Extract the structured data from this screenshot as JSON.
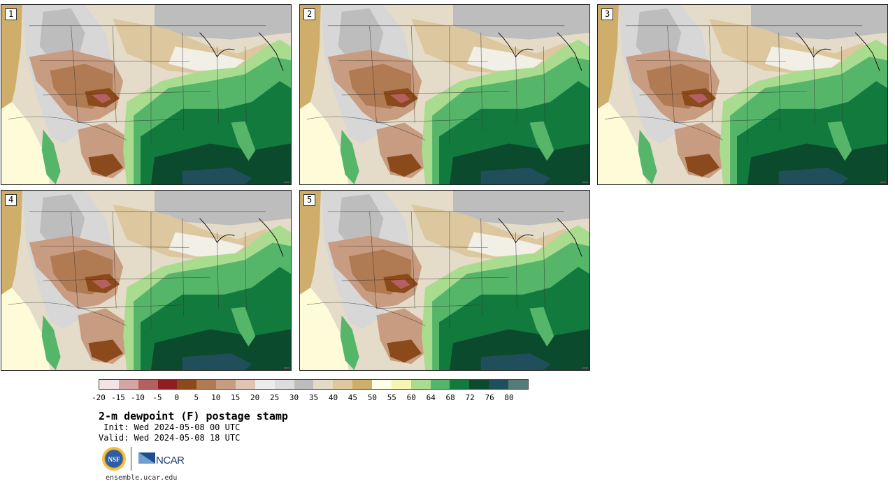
{
  "panels": [
    {
      "label": "1"
    },
    {
      "label": "2"
    },
    {
      "label": "3"
    },
    {
      "label": "4"
    },
    {
      "label": "5"
    }
  ],
  "colorbar": {
    "colors": [
      "#f2e4e4",
      "#d7a4a4",
      "#b56060",
      "#8f1d22",
      "#8a4a1c",
      "#b07a52",
      "#c89c80",
      "#e0c3b0",
      "#ececec",
      "#dcdcdc",
      "#bdbdbd",
      "#e3dbc6",
      "#dcc79e",
      "#cfae6c",
      "#fefde8",
      "#f5f6b2",
      "#aadc90",
      "#55b66a",
      "#137a3e",
      "#0b4a2c",
      "#1f4f5a",
      "#557a7a"
    ],
    "ticks": [
      "-20",
      "-15",
      "-10",
      "-5",
      "0",
      "5",
      "10",
      "15",
      "20",
      "25",
      "30",
      "35",
      "40",
      "45",
      "50",
      "55",
      "60",
      "64",
      "68",
      "72",
      "76",
      "80"
    ]
  },
  "title": "2-m dewpoint (F) postage stamp",
  "init": " Init: Wed 2024-05-08 00 UTC",
  "valid": "Valid: Wed 2024-05-08 18 UTC",
  "logos": {
    "nsf": "NSF",
    "ncar": "NCAR"
  },
  "footer": "ensemble.ucar.edu"
}
